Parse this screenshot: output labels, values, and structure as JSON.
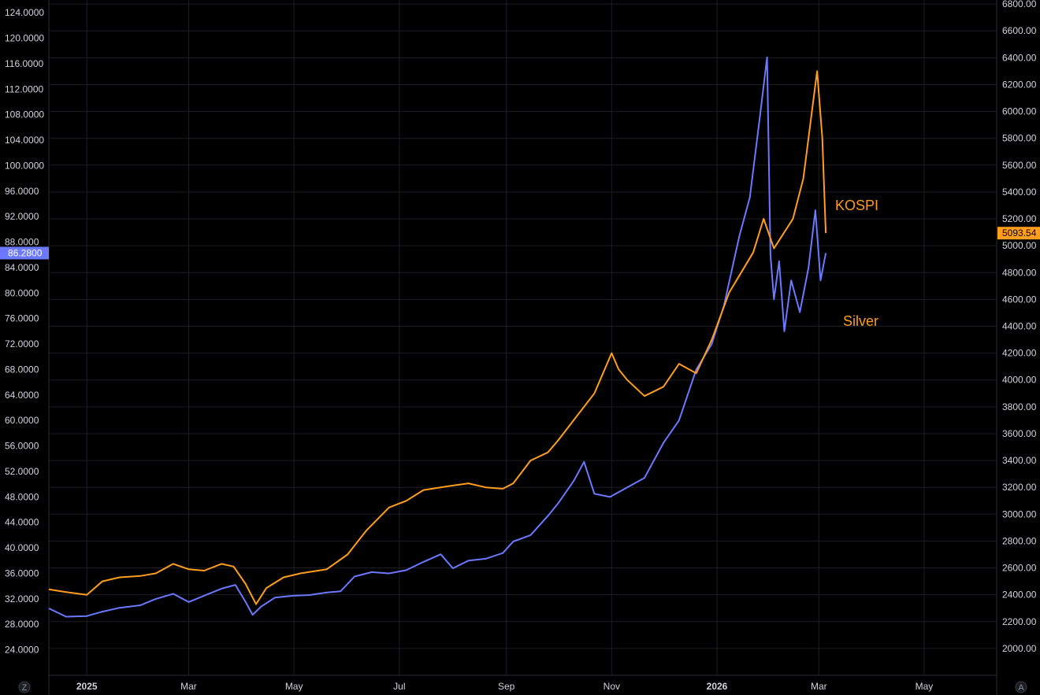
{
  "colors": {
    "background": "#000000",
    "grid": "#1c1e24",
    "axis_text": "#d1d4dc",
    "silver": "#6b78ff",
    "kospi": "#ff9d1f"
  },
  "corner": {
    "left_button": "Z",
    "right_button": "A"
  },
  "chart_data": {
    "type": "line",
    "left_axis": {
      "min": 20,
      "max": 126,
      "ticks": [
        "24.0000",
        "28.0000",
        "32.0000",
        "36.0000",
        "40.0000",
        "44.0000",
        "48.0000",
        "52.0000",
        "56.0000",
        "60.0000",
        "64.0000",
        "68.0000",
        "72.0000",
        "76.0000",
        "80.0000",
        "84.0000",
        "88.0000",
        "92.0000",
        "96.0000",
        "100.0000",
        "104.0000",
        "108.0000",
        "112.0000",
        "116.0000",
        "120.0000",
        "124.0000"
      ],
      "tick_values": [
        24,
        28,
        32,
        36,
        40,
        44,
        48,
        52,
        56,
        60,
        64,
        68,
        72,
        76,
        80,
        84,
        88,
        92,
        96,
        100,
        104,
        108,
        112,
        116,
        120,
        124
      ]
    },
    "right_axis": {
      "min": 1800,
      "max": 6830,
      "ticks": [
        "2000.00",
        "2200.00",
        "2400.00",
        "2600.00",
        "2800.00",
        "3000.00",
        "3200.00",
        "3400.00",
        "3600.00",
        "3800.00",
        "4000.00",
        "4200.00",
        "4400.00",
        "4600.00",
        "4800.00",
        "5000.00",
        "5200.00",
        "5400.00",
        "5600.00",
        "5800.00",
        "6000.00",
        "6200.00",
        "6400.00",
        "6600.00",
        "6800.00"
      ],
      "tick_values": [
        2000,
        2200,
        2400,
        2600,
        2800,
        3000,
        3200,
        3400,
        3600,
        3800,
        4000,
        4200,
        4400,
        4600,
        4800,
        5000,
        5200,
        5400,
        5600,
        5800,
        6000,
        6200,
        6400,
        6600,
        6800
      ]
    },
    "x_axis": {
      "labels": [
        "2025",
        "Mar",
        "May",
        "Jul",
        "Sep",
        "Nov",
        "2026",
        "Mar",
        "May"
      ],
      "dates": [
        "2025-01-01",
        "2025-03-01",
        "2025-05-01",
        "2025-07-01",
        "2025-09-01",
        "2025-11-01",
        "2026-01-01",
        "2026-03-01",
        "2026-05-01"
      ],
      "year_labels": [
        "2025",
        "2026"
      ],
      "range": [
        "2024-12-10",
        "2026-06-12"
      ]
    },
    "grid": true,
    "series": [
      {
        "name": "Silver",
        "axis": "left",
        "color": "#6b78ff",
        "last_value_label": "86.2800",
        "points": [
          [
            "2024-12-10",
            30.5
          ],
          [
            "2024-12-20",
            29.2
          ],
          [
            "2025-01-01",
            29.3
          ],
          [
            "2025-01-10",
            30.0
          ],
          [
            "2025-01-20",
            30.6
          ],
          [
            "2025-02-01",
            31.0
          ],
          [
            "2025-02-10",
            32.0
          ],
          [
            "2025-02-20",
            32.8
          ],
          [
            "2025-03-01",
            31.5
          ],
          [
            "2025-03-10",
            32.5
          ],
          [
            "2025-03-20",
            33.6
          ],
          [
            "2025-03-28",
            34.2
          ],
          [
            "2025-04-03",
            31.5
          ],
          [
            "2025-04-07",
            29.5
          ],
          [
            "2025-04-12",
            30.8
          ],
          [
            "2025-04-20",
            32.2
          ],
          [
            "2025-05-01",
            32.5
          ],
          [
            "2025-05-10",
            32.6
          ],
          [
            "2025-05-20",
            33.0
          ],
          [
            "2025-05-28",
            33.2
          ],
          [
            "2025-06-05",
            35.5
          ],
          [
            "2025-06-15",
            36.2
          ],
          [
            "2025-06-25",
            36.0
          ],
          [
            "2025-07-05",
            36.5
          ],
          [
            "2025-07-15",
            37.8
          ],
          [
            "2025-07-25",
            39.0
          ],
          [
            "2025-08-01",
            36.8
          ],
          [
            "2025-08-10",
            38.0
          ],
          [
            "2025-08-20",
            38.3
          ],
          [
            "2025-08-30",
            39.2
          ],
          [
            "2025-09-05",
            41.0
          ],
          [
            "2025-09-15",
            42.0
          ],
          [
            "2025-09-25",
            45.0
          ],
          [
            "2025-10-01",
            47.0
          ],
          [
            "2025-10-10",
            50.5
          ],
          [
            "2025-10-16",
            53.5
          ],
          [
            "2025-10-22",
            48.5
          ],
          [
            "2025-10-31",
            48.0
          ],
          [
            "2025-11-10",
            49.5
          ],
          [
            "2025-11-20",
            51.0
          ],
          [
            "2025-12-01",
            56.5
          ],
          [
            "2025-12-10",
            60.0
          ],
          [
            "2025-12-20",
            68.0
          ],
          [
            "2025-12-29",
            72.0
          ],
          [
            "2026-01-05",
            78.0
          ],
          [
            "2026-01-14",
            89.0
          ],
          [
            "2026-01-20",
            95.0
          ],
          [
            "2026-01-26",
            108.0
          ],
          [
            "2026-01-30",
            117.0
          ],
          [
            "2026-02-01",
            86.0
          ],
          [
            "2026-02-03",
            79.0
          ],
          [
            "2026-02-06",
            85.0
          ],
          [
            "2026-02-09",
            74.0
          ],
          [
            "2026-02-13",
            82.0
          ],
          [
            "2026-02-18",
            77.0
          ],
          [
            "2026-02-23",
            84.0
          ],
          [
            "2026-02-27",
            93.0
          ],
          [
            "2026-03-02",
            82.0
          ],
          [
            "2026-03-05",
            86.28
          ]
        ]
      },
      {
        "name": "KOSPI",
        "axis": "right",
        "color": "#ff9d1f",
        "last_value_label": "5093.54",
        "points": [
          [
            "2024-12-10",
            2440
          ],
          [
            "2024-12-20",
            2420
          ],
          [
            "2025-01-01",
            2400
          ],
          [
            "2025-01-10",
            2500
          ],
          [
            "2025-01-20",
            2530
          ],
          [
            "2025-02-01",
            2540
          ],
          [
            "2025-02-10",
            2560
          ],
          [
            "2025-02-20",
            2630
          ],
          [
            "2025-03-01",
            2590
          ],
          [
            "2025-03-10",
            2580
          ],
          [
            "2025-03-20",
            2630
          ],
          [
            "2025-03-27",
            2610
          ],
          [
            "2025-04-03",
            2480
          ],
          [
            "2025-04-09",
            2330
          ],
          [
            "2025-04-15",
            2450
          ],
          [
            "2025-04-25",
            2530
          ],
          [
            "2025-05-05",
            2560
          ],
          [
            "2025-05-20",
            2590
          ],
          [
            "2025-06-01",
            2700
          ],
          [
            "2025-06-12",
            2880
          ],
          [
            "2025-06-25",
            3050
          ],
          [
            "2025-07-05",
            3100
          ],
          [
            "2025-07-15",
            3180
          ],
          [
            "2025-07-30",
            3210
          ],
          [
            "2025-08-10",
            3230
          ],
          [
            "2025-08-20",
            3200
          ],
          [
            "2025-08-30",
            3190
          ],
          [
            "2025-09-05",
            3230
          ],
          [
            "2025-09-15",
            3400
          ],
          [
            "2025-09-25",
            3460
          ],
          [
            "2025-10-01",
            3550
          ],
          [
            "2025-10-10",
            3700
          ],
          [
            "2025-10-22",
            3900
          ],
          [
            "2025-11-01",
            4200
          ],
          [
            "2025-11-05",
            4080
          ],
          [
            "2025-11-10",
            4000
          ],
          [
            "2025-11-20",
            3880
          ],
          [
            "2025-12-01",
            3950
          ],
          [
            "2025-12-10",
            4120
          ],
          [
            "2025-12-20",
            4050
          ],
          [
            "2025-12-29",
            4300
          ],
          [
            "2026-01-08",
            4650
          ],
          [
            "2026-01-15",
            4800
          ],
          [
            "2026-01-22",
            4950
          ],
          [
            "2026-01-28",
            5200
          ],
          [
            "2026-02-03",
            4980
          ],
          [
            "2026-02-09",
            5100
          ],
          [
            "2026-02-14",
            5200
          ],
          [
            "2026-02-20",
            5500
          ],
          [
            "2026-02-25",
            6000
          ],
          [
            "2026-02-28",
            6300
          ],
          [
            "2026-03-03",
            5800
          ],
          [
            "2026-03-05",
            5093.54
          ]
        ]
      }
    ],
    "annotations": [
      {
        "text": "KOSPI",
        "color": "#ff9d1f"
      },
      {
        "text": "Silver",
        "color": "#ff9d1f"
      }
    ]
  }
}
